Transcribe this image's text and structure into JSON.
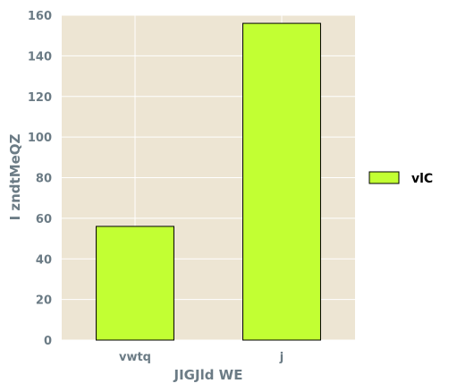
{
  "chart_data": {
    "type": "bar",
    "categories": [
      "vwtq",
      "j"
    ],
    "series": [
      {
        "name": "vlC",
        "values": [
          56,
          156
        ],
        "color": "#c2ff33"
      }
    ],
    "xlabel": "JIGJld WE",
    "ylabel": "I zndtMeQZ",
    "ylim": [
      0,
      160
    ],
    "yticks": [
      0,
      20,
      40,
      60,
      80,
      100,
      120,
      140,
      160
    ],
    "grid": true,
    "legend": "right",
    "plot_background": "#ede5d3",
    "grid_color": "#ffffff",
    "bar_edge_color": "#000000",
    "tick_label_color": "#6b7b85"
  }
}
